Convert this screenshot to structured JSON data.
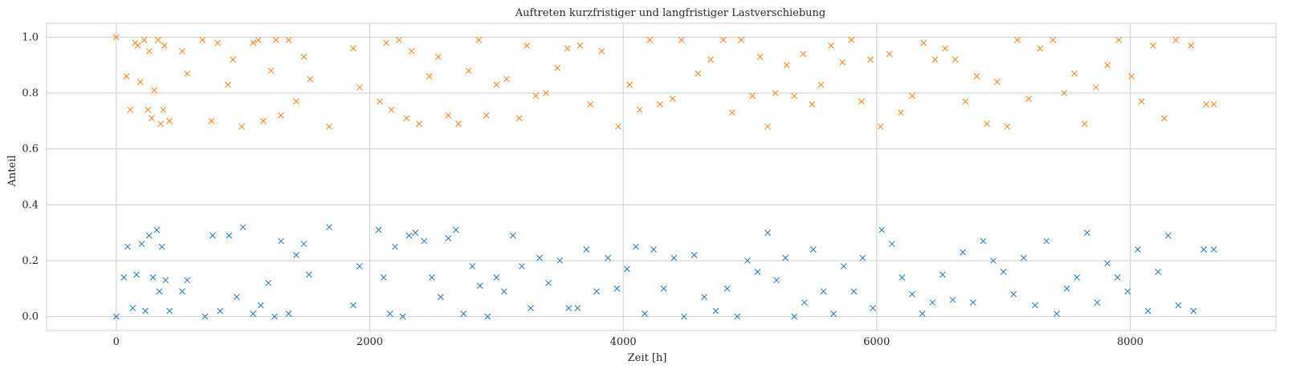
{
  "chart_data": {
    "type": "scatter",
    "title": "Auftreten kurzfristiger und langfristiger Lastverschiebung",
    "xlabel": "Zeit [h]",
    "ylabel": "Anteil",
    "xlim": [
      -550,
      9150
    ],
    "ylim": [
      -0.05,
      1.05
    ],
    "xticks": [
      0,
      2000,
      4000,
      6000,
      8000
    ],
    "yticks": [
      0.0,
      0.2,
      0.4,
      0.6,
      0.8,
      1.0
    ],
    "grid": true,
    "marker": "x",
    "series": [
      {
        "color": "#ff7f0e",
        "x": [
          0,
          80,
          110,
          150,
          170,
          190,
          220,
          250,
          260,
          280,
          300,
          330,
          350,
          370,
          380,
          420,
          520,
          560,
          680,
          750,
          800,
          880,
          920,
          990,
          1080,
          1120,
          1160,
          1220,
          1260,
          1300,
          1360,
          1420,
          1480,
          1530,
          1680,
          1870,
          1920,
          2080,
          2130,
          2170,
          2230,
          2290,
          2330,
          2390,
          2470,
          2540,
          2620,
          2700,
          2780,
          2860,
          2920,
          3000,
          3080,
          3180,
          3240,
          3310,
          3390,
          3480,
          3560,
          3660,
          3740,
          3830,
          3960,
          4050,
          4130,
          4210,
          4290,
          4390,
          4460,
          4590,
          4690,
          4790,
          4860,
          4930,
          5020,
          5080,
          5140,
          5200,
          5290,
          5350,
          5420,
          5490,
          5560,
          5640,
          5730,
          5800,
          5880,
          5950,
          6030,
          6100,
          6190,
          6280,
          6370,
          6460,
          6540,
          6620,
          6700,
          6790,
          6870,
          6950,
          7030,
          7110,
          7200,
          7290,
          7390,
          7480,
          7560,
          7640,
          7730,
          7820,
          7910,
          8010,
          8090,
          8180,
          8270,
          8360,
          8480,
          8600,
          8660
        ],
        "y": [
          1.0,
          0.86,
          0.74,
          0.98,
          0.97,
          0.84,
          0.99,
          0.74,
          0.95,
          0.71,
          0.81,
          0.99,
          0.69,
          0.74,
          0.97,
          0.7,
          0.95,
          0.87,
          0.99,
          0.7,
          0.98,
          0.83,
          0.92,
          0.68,
          0.98,
          0.99,
          0.7,
          0.88,
          0.99,
          0.72,
          0.99,
          0.77,
          0.93,
          0.85,
          0.68,
          0.96,
          0.82,
          0.77,
          0.98,
          0.74,
          0.99,
          0.71,
          0.95,
          0.69,
          0.86,
          0.93,
          0.72,
          0.69,
          0.88,
          0.99,
          0.72,
          0.83,
          0.85,
          0.71,
          0.97,
          0.79,
          0.8,
          0.89,
          0.96,
          0.97,
          0.76,
          0.95,
          0.68,
          0.83,
          0.74,
          0.99,
          0.76,
          0.78,
          0.99,
          0.87,
          0.92,
          0.99,
          0.73,
          0.99,
          0.79,
          0.93,
          0.68,
          0.8,
          0.9,
          0.79,
          0.94,
          0.76,
          0.83,
          0.97,
          0.91,
          0.99,
          0.77,
          0.92,
          0.68,
          0.94,
          0.73,
          0.79,
          0.98,
          0.92,
          0.96,
          0.92,
          0.77,
          0.86,
          0.69,
          0.84,
          0.68,
          0.99,
          0.78,
          0.96,
          0.99,
          0.8,
          0.87,
          0.69,
          0.82,
          0.9,
          0.99,
          0.86,
          0.77,
          0.97,
          0.71,
          0.99,
          0.97,
          0.76,
          0.76
        ]
      },
      {
        "color": "#1f77b4",
        "x": [
          0,
          60,
          90,
          130,
          160,
          200,
          230,
          260,
          290,
          320,
          340,
          360,
          390,
          420,
          520,
          560,
          700,
          760,
          820,
          890,
          950,
          1000,
          1080,
          1140,
          1200,
          1250,
          1300,
          1360,
          1420,
          1480,
          1520,
          1680,
          1870,
          1920,
          2070,
          2110,
          2160,
          2200,
          2260,
          2310,
          2360,
          2430,
          2490,
          2560,
          2620,
          2680,
          2740,
          2810,
          2870,
          2930,
          3000,
          3060,
          3130,
          3200,
          3270,
          3340,
          3410,
          3500,
          3570,
          3640,
          3710,
          3790,
          3880,
          3950,
          4030,
          4100,
          4170,
          4240,
          4320,
          4400,
          4480,
          4560,
          4640,
          4730,
          4820,
          4900,
          4980,
          5060,
          5140,
          5210,
          5280,
          5350,
          5430,
          5500,
          5580,
          5660,
          5740,
          5820,
          5890,
          5970,
          6040,
          6120,
          6200,
          6280,
          6360,
          6440,
          6520,
          6600,
          6680,
          6760,
          6840,
          6920,
          7000,
          7080,
          7160,
          7250,
          7340,
          7420,
          7500,
          7580,
          7660,
          7740,
          7820,
          7900,
          7980,
          8060,
          8140,
          8220,
          8300,
          8380,
          8500,
          8580,
          8660
        ],
        "y": [
          0.0,
          0.14,
          0.25,
          0.03,
          0.15,
          0.26,
          0.02,
          0.29,
          0.14,
          0.31,
          0.09,
          0.25,
          0.13,
          0.02,
          0.09,
          0.13,
          0.0,
          0.29,
          0.02,
          0.29,
          0.07,
          0.32,
          0.01,
          0.04,
          0.12,
          0.0,
          0.27,
          0.01,
          0.22,
          0.26,
          0.15,
          0.32,
          0.04,
          0.18,
          0.31,
          0.14,
          0.01,
          0.25,
          0.0,
          0.29,
          0.3,
          0.27,
          0.14,
          0.07,
          0.28,
          0.31,
          0.01,
          0.18,
          0.11,
          0.0,
          0.14,
          0.09,
          0.29,
          0.18,
          0.03,
          0.21,
          0.12,
          0.2,
          0.03,
          0.03,
          0.24,
          0.09,
          0.21,
          0.1,
          0.17,
          0.25,
          0.01,
          0.24,
          0.1,
          0.21,
          0.0,
          0.22,
          0.07,
          0.02,
          0.1,
          0.0,
          0.2,
          0.16,
          0.3,
          0.13,
          0.21,
          0.0,
          0.05,
          0.24,
          0.09,
          0.01,
          0.18,
          0.09,
          0.21,
          0.03,
          0.31,
          0.26,
          0.14,
          0.08,
          0.01,
          0.05,
          0.15,
          0.06,
          0.23,
          0.05,
          0.27,
          0.2,
          0.16,
          0.08,
          0.21,
          0.04,
          0.27,
          0.01,
          0.1,
          0.14,
          0.3,
          0.05,
          0.19,
          0.14,
          0.09,
          0.24,
          0.02,
          0.16,
          0.29,
          0.04,
          0.02,
          0.24,
          0.24
        ]
      }
    ]
  }
}
